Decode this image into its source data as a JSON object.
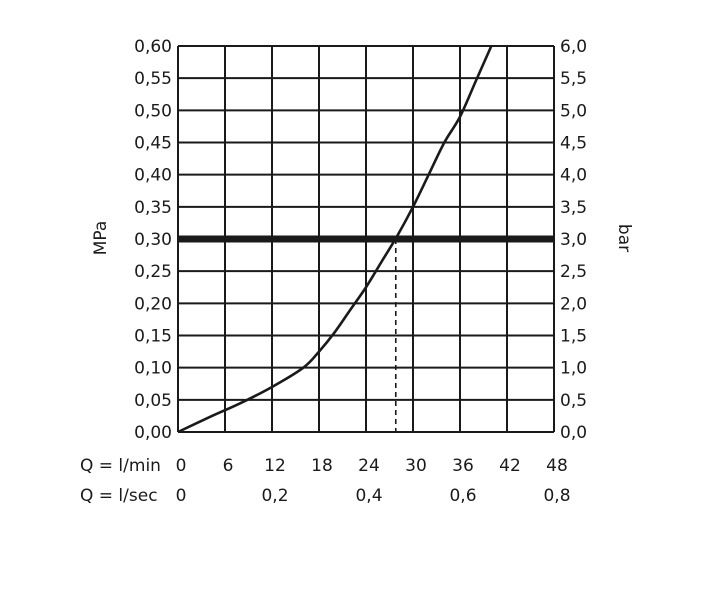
{
  "chart_data": {
    "type": "line",
    "left_axis": {
      "label": "MPa",
      "range": [
        0,
        0.6
      ],
      "ticks": [
        "0,00",
        "0,05",
        "0,10",
        "0,15",
        "0,20",
        "0,25",
        "0,30",
        "0,35",
        "0,40",
        "0,45",
        "0,50",
        "0,55",
        "0,60"
      ]
    },
    "right_axis": {
      "label": "bar",
      "range": [
        0,
        6
      ],
      "ticks": [
        "0,0",
        "0,5",
        "1,0",
        "1,5",
        "2,0",
        "2,5",
        "3,0",
        "3,5",
        "4,0",
        "4,5",
        "5,0",
        "5,5",
        "6,0"
      ]
    },
    "x_axis_lmin": {
      "label": "Q = l/min",
      "range": [
        0,
        48
      ],
      "ticks": [
        "0",
        "6",
        "12",
        "18",
        "24",
        "30",
        "36",
        "42",
        "48"
      ]
    },
    "x_axis_lsec": {
      "label": "Q = l/sec",
      "ticks": [
        "0",
        "0,2",
        "0,4",
        "0,6",
        "0,8"
      ],
      "tick_positions_lmin": [
        0,
        12,
        24,
        36,
        48
      ]
    },
    "grid": true,
    "series": [
      {
        "x": [
          0,
          4,
          8,
          12,
          16,
          18,
          20,
          22,
          24,
          26,
          28,
          30,
          32,
          34,
          36,
          38,
          40
        ],
        "y": [
          0,
          0.023,
          0.045,
          0.07,
          0.1,
          0.125,
          0.155,
          0.19,
          0.225,
          0.265,
          0.305,
          0.35,
          0.4,
          0.45,
          0.49,
          0.545,
          0.6
        ]
      }
    ],
    "reference_line": {
      "y": 0.3
    },
    "reference_drop": {
      "x": 27.8
    }
  }
}
